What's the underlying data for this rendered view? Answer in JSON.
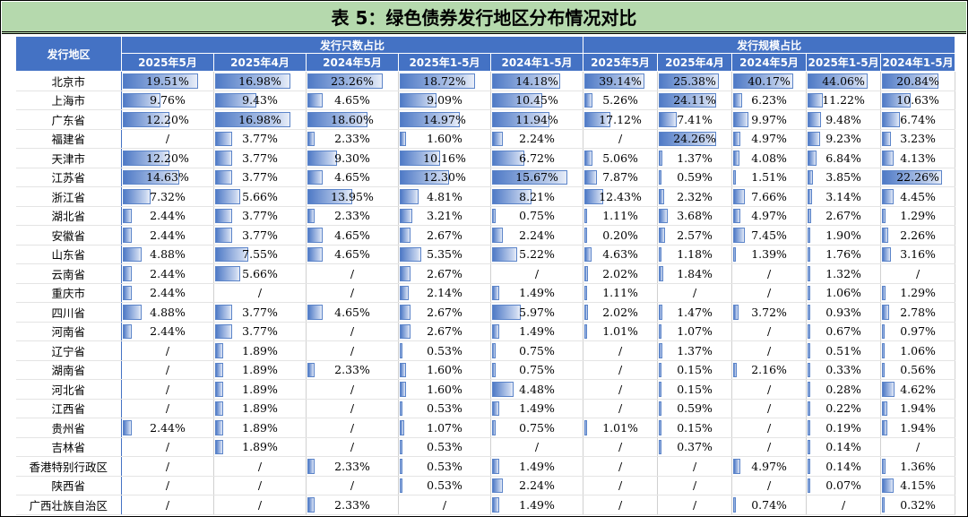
{
  "title": "表 5：绿色债券发行地区分布情况对比",
  "header": {
    "region_label": "发行地区",
    "group1": "发行只数占比",
    "group2": "发行规模占比",
    "periods": [
      "2025年5月",
      "2025年4月",
      "2024年5月",
      "2025年1-5月",
      "2024年1-5月",
      "2025年5月",
      "2025年4月",
      "2024年5月",
      "2025年1-5月",
      "2024年1-5月"
    ]
  },
  "rows": [
    {
      "region": "北京市",
      "cells": [
        "19.51%",
        "16.98%",
        "23.26%",
        "18.72%",
        "14.18%",
        "39.14%",
        "25.38%",
        "40.17%",
        "44.06%",
        "20.84%"
      ]
    },
    {
      "region": "上海市",
      "cells": [
        "9.76%",
        "9.43%",
        "4.65%",
        "9.09%",
        "10.45%",
        "5.26%",
        "24.11%",
        "6.23%",
        "11.22%",
        "10.63%"
      ]
    },
    {
      "region": "广东省",
      "cells": [
        "12.20%",
        "16.98%",
        "18.60%",
        "14.97%",
        "11.94%",
        "17.12%",
        "7.41%",
        "9.97%",
        "9.48%",
        "6.74%"
      ]
    },
    {
      "region": "福建省",
      "cells": [
        "/",
        "3.77%",
        "2.33%",
        "1.60%",
        "2.24%",
        "/",
        "24.26%",
        "4.97%",
        "9.23%",
        "3.23%"
      ]
    },
    {
      "region": "天津市",
      "cells": [
        "12.20%",
        "3.77%",
        "9.30%",
        "10.16%",
        "6.72%",
        "5.06%",
        "1.37%",
        "4.08%",
        "6.84%",
        "4.13%"
      ]
    },
    {
      "region": "江苏省",
      "cells": [
        "14.63%",
        "3.77%",
        "4.65%",
        "12.30%",
        "15.67%",
        "7.87%",
        "0.59%",
        "1.51%",
        "3.85%",
        "22.26%"
      ]
    },
    {
      "region": "浙江省",
      "cells": [
        "7.32%",
        "5.66%",
        "13.95%",
        "4.81%",
        "8.21%",
        "12.43%",
        "2.32%",
        "7.66%",
        "3.14%",
        "4.45%"
      ]
    },
    {
      "region": "湖北省",
      "cells": [
        "2.44%",
        "3.77%",
        "2.33%",
        "3.21%",
        "0.75%",
        "1.11%",
        "3.68%",
        "4.97%",
        "2.67%",
        "1.29%"
      ]
    },
    {
      "region": "安徽省",
      "cells": [
        "2.44%",
        "3.77%",
        "4.65%",
        "2.67%",
        "2.24%",
        "0.20%",
        "2.57%",
        "7.45%",
        "1.90%",
        "2.26%"
      ]
    },
    {
      "region": "山东省",
      "cells": [
        "4.88%",
        "7.55%",
        "4.65%",
        "5.35%",
        "5.22%",
        "4.63%",
        "1.18%",
        "1.39%",
        "1.76%",
        "3.16%"
      ]
    },
    {
      "region": "云南省",
      "cells": [
        "2.44%",
        "5.66%",
        "/",
        "2.67%",
        "/",
        "2.02%",
        "1.84%",
        "/",
        "1.32%",
        "/"
      ]
    },
    {
      "region": "重庆市",
      "cells": [
        "2.44%",
        "/",
        "/",
        "2.14%",
        "1.49%",
        "1.11%",
        "/",
        "/",
        "1.06%",
        "1.29%"
      ]
    },
    {
      "region": "四川省",
      "cells": [
        "4.88%",
        "3.77%",
        "4.65%",
        "2.67%",
        "5.97%",
        "2.02%",
        "1.47%",
        "3.72%",
        "0.93%",
        "2.78%"
      ]
    },
    {
      "region": "河南省",
      "cells": [
        "2.44%",
        "3.77%",
        "/",
        "2.67%",
        "1.49%",
        "1.01%",
        "1.07%",
        "/",
        "0.67%",
        "0.97%"
      ]
    },
    {
      "region": "辽宁省",
      "cells": [
        "/",
        "1.89%",
        "/",
        "0.53%",
        "0.75%",
        "/",
        "1.37%",
        "/",
        "0.51%",
        "1.06%"
      ]
    },
    {
      "region": "湖南省",
      "cells": [
        "/",
        "1.89%",
        "2.33%",
        "1.60%",
        "0.75%",
        "/",
        "0.15%",
        "2.16%",
        "0.33%",
        "0.56%"
      ]
    },
    {
      "region": "河北省",
      "cells": [
        "/",
        "1.89%",
        "/",
        "1.60%",
        "4.48%",
        "/",
        "0.15%",
        "/",
        "0.28%",
        "4.62%"
      ]
    },
    {
      "region": "江西省",
      "cells": [
        "/",
        "1.89%",
        "/",
        "0.53%",
        "1.49%",
        "/",
        "0.59%",
        "/",
        "0.22%",
        "1.94%"
      ]
    },
    {
      "region": "贵州省",
      "cells": [
        "2.44%",
        "1.89%",
        "/",
        "1.07%",
        "0.75%",
        "1.01%",
        "0.15%",
        "/",
        "0.19%",
        "1.94%"
      ]
    },
    {
      "region": "吉林省",
      "cells": [
        "/",
        "1.89%",
        "/",
        "0.53%",
        "/",
        "/",
        "0.37%",
        "/",
        "0.14%",
        "/"
      ]
    },
    {
      "region": "香港特别行政区",
      "cells": [
        "/",
        "/",
        "2.33%",
        "0.53%",
        "1.49%",
        "/",
        "/",
        "4.97%",
        "0.14%",
        "1.36%"
      ]
    },
    {
      "region": "陕西省",
      "cells": [
        "/",
        "/",
        "/",
        "0.53%",
        "2.24%",
        "/",
        "/",
        "/",
        "0.07%",
        "4.15%"
      ]
    },
    {
      "region": "广西壮族自治区",
      "cells": [
        "/",
        "/",
        "2.33%",
        "/",
        "1.49%",
        "/",
        "/",
        "0.74%",
        "/",
        "0.32%"
      ]
    }
  ],
  "bar_color": "#4f7ac6",
  "header_color": "#4472c4",
  "title_bg": "#b5d9ad"
}
